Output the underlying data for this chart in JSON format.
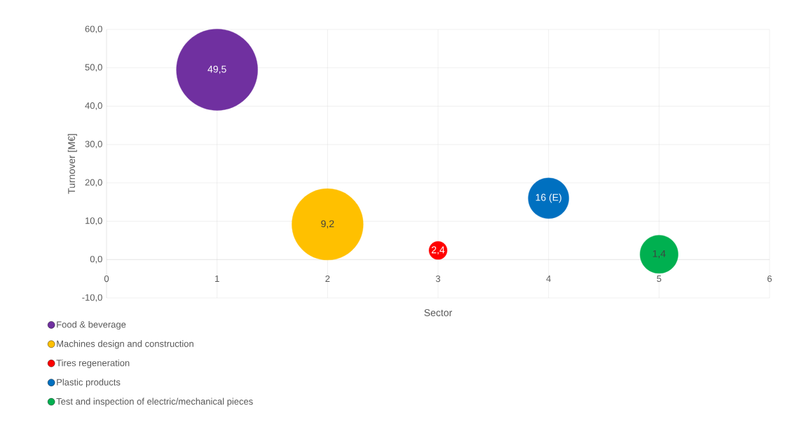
{
  "chart_data": {
    "type": "bubble",
    "xlabel": "Sector",
    "ylabel": "Turnover [M€]",
    "xlim": [
      0,
      6
    ],
    "xticks": [
      0,
      1,
      2,
      3,
      4,
      5,
      6
    ],
    "ylim": [
      -10,
      60
    ],
    "yticks": [
      {
        "value": -10,
        "label": "-10,0"
      },
      {
        "value": 0,
        "label": "0,0"
      },
      {
        "value": 10,
        "label": "10,0"
      },
      {
        "value": 20,
        "label": "20,0"
      },
      {
        "value": 30,
        "label": "30,0"
      },
      {
        "value": 40,
        "label": "40,0"
      },
      {
        "value": 50,
        "label": "50,0"
      },
      {
        "value": 60,
        "label": "60,0"
      }
    ],
    "grid": true,
    "legend": "bottom",
    "series": [
      {
        "name": "Food & beverage",
        "color": "#7030a0",
        "x": [
          1
        ],
        "values": [
          49.5
        ],
        "sizes": [
          1
        ],
        "value_labels": [
          "49,5"
        ]
      },
      {
        "name": "Machines design and construction",
        "color": "#ffc000",
        "x": [
          2
        ],
        "values": [
          9.2
        ],
        "sizes": [
          0.77
        ],
        "value_labels": [
          "9,2"
        ]
      },
      {
        "name": "Tires regeneration",
        "color": "#ff0000",
        "x": [
          3
        ],
        "values": [
          2.4
        ],
        "sizes": [
          0.05
        ],
        "value_labels": [
          "2,4"
        ]
      },
      {
        "name": "Plastic products",
        "color": "#0070c0",
        "x": [
          4
        ],
        "values": [
          16
        ],
        "sizes": [
          0.25
        ],
        "value_labels": [
          "16 (E)"
        ]
      },
      {
        "name": "Test and inspection of electric/mechanical pieces",
        "color": "#00b050",
        "x": [
          5
        ],
        "values": [
          1.4
        ],
        "sizes": [
          0.22
        ],
        "value_labels": [
          "1,4"
        ]
      }
    ]
  }
}
